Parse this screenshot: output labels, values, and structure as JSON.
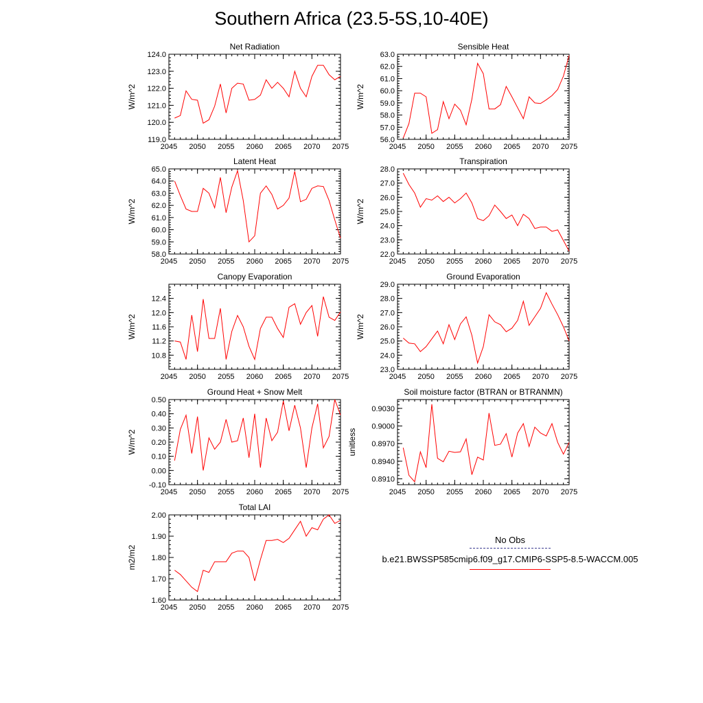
{
  "figure_title": "Southern Africa (23.5-5S,10-40E)",
  "colors": {
    "series": "#ff0000",
    "axes": "#000000",
    "obs_line": "#3b3b8f"
  },
  "legend": {
    "obs_label": "No Obs",
    "model_label": "b.e21.BWSSP585cmip6.f09_g17.CMIP6-SSP5-8.5-WACCM.005"
  },
  "chart_data": [
    {
      "type": "line",
      "title": "Net Radiation",
      "ylabel": "W/m^2",
      "xlim": [
        2045,
        2075
      ],
      "xticks": [
        2045,
        2050,
        2055,
        2060,
        2065,
        2070,
        2075
      ],
      "ylim": [
        119.0,
        124.0
      ],
      "yticks": [
        119.0,
        120.0,
        121.0,
        122.0,
        123.0,
        124.0
      ],
      "ytick_decimals": 1,
      "x": [
        2046,
        2047,
        2048,
        2049,
        2050,
        2051,
        2052,
        2053,
        2054,
        2055,
        2056,
        2057,
        2058,
        2059,
        2060,
        2061,
        2062,
        2063,
        2064,
        2065,
        2066,
        2067,
        2068,
        2069,
        2070,
        2071,
        2072,
        2073,
        2074,
        2075
      ],
      "series": [
        {
          "values": [
            120.25,
            120.4,
            121.85,
            121.35,
            121.3,
            119.95,
            120.15,
            120.95,
            122.25,
            120.55,
            122.0,
            122.3,
            122.25,
            121.3,
            121.35,
            121.6,
            122.5,
            122.0,
            122.35,
            122.0,
            121.5,
            123.0,
            122.0,
            121.5,
            122.7,
            123.35,
            123.35,
            122.8,
            122.5,
            122.7
          ]
        }
      ]
    },
    {
      "type": "line",
      "title": "Sensible Heat",
      "ylabel": "W/m^2",
      "xlim": [
        2045,
        2075
      ],
      "xticks": [
        2045,
        2050,
        2055,
        2060,
        2065,
        2070,
        2075
      ],
      "ylim": [
        56.0,
        63.0
      ],
      "yticks": [
        56.0,
        57.0,
        58.0,
        59.0,
        60.0,
        61.0,
        62.0,
        63.0
      ],
      "ytick_decimals": 1,
      "x": [
        2046,
        2047,
        2048,
        2049,
        2050,
        2051,
        2052,
        2053,
        2054,
        2055,
        2056,
        2057,
        2058,
        2059,
        2060,
        2061,
        2062,
        2063,
        2064,
        2065,
        2066,
        2067,
        2068,
        2069,
        2070,
        2071,
        2072,
        2073,
        2074,
        2075
      ],
      "series": [
        {
          "values": [
            56.1,
            57.3,
            59.8,
            59.8,
            59.5,
            56.5,
            56.8,
            59.1,
            57.7,
            58.9,
            58.4,
            57.2,
            59.3,
            62.25,
            61.4,
            58.5,
            58.5,
            58.85,
            60.35,
            59.5,
            58.6,
            57.7,
            59.5,
            59.0,
            58.95,
            59.25,
            59.6,
            60.1,
            61.2,
            62.9
          ]
        }
      ]
    },
    {
      "type": "line",
      "title": "Latent Heat",
      "ylabel": "W/m^2",
      "xlim": [
        2045,
        2075
      ],
      "xticks": [
        2045,
        2050,
        2055,
        2060,
        2065,
        2070,
        2075
      ],
      "ylim": [
        58.0,
        65.0
      ],
      "yticks": [
        58.0,
        59.0,
        60.0,
        61.0,
        62.0,
        63.0,
        64.0,
        65.0
      ],
      "ytick_decimals": 1,
      "x": [
        2046,
        2047,
        2048,
        2049,
        2050,
        2051,
        2052,
        2053,
        2054,
        2055,
        2056,
        2057,
        2058,
        2059,
        2060,
        2061,
        2062,
        2063,
        2064,
        2065,
        2066,
        2067,
        2068,
        2069,
        2070,
        2071,
        2072,
        2073,
        2074,
        2075
      ],
      "series": [
        {
          "values": [
            64.0,
            62.8,
            61.7,
            61.5,
            61.5,
            63.4,
            63.0,
            61.8,
            64.3,
            61.4,
            63.5,
            64.85,
            62.4,
            59.0,
            59.5,
            63.0,
            63.6,
            62.9,
            61.7,
            62.0,
            62.6,
            64.8,
            62.3,
            62.5,
            63.4,
            63.6,
            63.55,
            62.4,
            60.8,
            59.3
          ]
        }
      ]
    },
    {
      "type": "line",
      "title": "Transpiration",
      "ylabel": "W/m^2",
      "xlim": [
        2045,
        2075
      ],
      "xticks": [
        2045,
        2050,
        2055,
        2060,
        2065,
        2070,
        2075
      ],
      "ylim": [
        22.0,
        28.0
      ],
      "yticks": [
        22.0,
        23.0,
        24.0,
        25.0,
        26.0,
        27.0,
        28.0
      ],
      "ytick_decimals": 1,
      "x": [
        2046,
        2047,
        2048,
        2049,
        2050,
        2051,
        2052,
        2053,
        2054,
        2055,
        2056,
        2057,
        2058,
        2059,
        2060,
        2061,
        2062,
        2063,
        2064,
        2065,
        2066,
        2067,
        2068,
        2069,
        2070,
        2071,
        2072,
        2073,
        2074,
        2075
      ],
      "series": [
        {
          "values": [
            27.7,
            26.9,
            26.3,
            25.3,
            25.9,
            25.8,
            26.1,
            25.7,
            26.0,
            25.6,
            25.9,
            26.3,
            25.6,
            24.5,
            24.35,
            24.7,
            25.45,
            25.0,
            24.5,
            24.75,
            24.0,
            24.8,
            24.5,
            23.8,
            23.9,
            23.9,
            23.6,
            23.7,
            22.95,
            22.2
          ]
        }
      ]
    },
    {
      "type": "line",
      "title": "Canopy Evaporation",
      "ylabel": "W/m^2",
      "xlim": [
        2045,
        2075
      ],
      "xticks": [
        2045,
        2050,
        2055,
        2060,
        2065,
        2070,
        2075
      ],
      "ylim": [
        10.4,
        12.8
      ],
      "yticks": [
        10.8,
        11.2,
        11.6,
        12.0,
        12.4
      ],
      "ytick_decimals": 1,
      "x": [
        2046,
        2047,
        2048,
        2049,
        2050,
        2051,
        2052,
        2053,
        2054,
        2055,
        2056,
        2057,
        2058,
        2059,
        2060,
        2061,
        2062,
        2063,
        2064,
        2065,
        2066,
        2067,
        2068,
        2069,
        2070,
        2071,
        2072,
        2073,
        2074,
        2075
      ],
      "series": [
        {
          "values": [
            11.2,
            11.17,
            10.68,
            11.93,
            10.9,
            12.38,
            11.27,
            11.27,
            12.12,
            10.68,
            11.47,
            11.92,
            11.6,
            11.05,
            10.68,
            11.55,
            11.87,
            11.87,
            11.55,
            11.3,
            12.15,
            12.25,
            11.67,
            12.0,
            12.2,
            11.33,
            12.45,
            11.87,
            11.78,
            12.02
          ]
        }
      ]
    },
    {
      "type": "line",
      "title": "Ground Evaporation",
      "ylabel": "W/m^2",
      "xlim": [
        2045,
        2075
      ],
      "xticks": [
        2045,
        2050,
        2055,
        2060,
        2065,
        2070,
        2075
      ],
      "ylim": [
        23.0,
        29.0
      ],
      "yticks": [
        23.0,
        24.0,
        25.0,
        26.0,
        27.0,
        28.0,
        29.0
      ],
      "ytick_decimals": 1,
      "x": [
        2046,
        2047,
        2048,
        2049,
        2050,
        2051,
        2052,
        2053,
        2054,
        2055,
        2056,
        2057,
        2058,
        2059,
        2060,
        2061,
        2062,
        2063,
        2064,
        2065,
        2066,
        2067,
        2068,
        2069,
        2070,
        2071,
        2072,
        2073,
        2074,
        2075
      ],
      "series": [
        {
          "values": [
            25.2,
            24.85,
            24.8,
            24.25,
            24.6,
            25.15,
            25.7,
            24.8,
            26.15,
            25.1,
            26.2,
            26.7,
            25.4,
            23.45,
            24.6,
            26.85,
            26.35,
            26.15,
            25.65,
            25.9,
            26.45,
            27.8,
            26.1,
            26.7,
            27.3,
            28.4,
            27.6,
            26.85,
            26.0,
            25.0
          ]
        }
      ]
    },
    {
      "type": "line",
      "title": "Ground Heat + Snow Melt",
      "ylabel": "W/m^2",
      "xlim": [
        2045,
        2075
      ],
      "xticks": [
        2045,
        2050,
        2055,
        2060,
        2065,
        2070,
        2075
      ],
      "ylim": [
        -0.1,
        0.5
      ],
      "yticks": [
        -0.1,
        0.0,
        0.1,
        0.2,
        0.3,
        0.4,
        0.5
      ],
      "ytick_decimals": 2,
      "x": [
        2046,
        2047,
        2048,
        2049,
        2050,
        2051,
        2052,
        2053,
        2054,
        2055,
        2056,
        2057,
        2058,
        2059,
        2060,
        2061,
        2062,
        2063,
        2064,
        2065,
        2066,
        2067,
        2068,
        2069,
        2070,
        2071,
        2072,
        2073,
        2074,
        2075
      ],
      "series": [
        {
          "values": [
            0.07,
            0.29,
            0.39,
            0.12,
            0.38,
            0.0,
            0.23,
            0.15,
            0.2,
            0.36,
            0.2,
            0.21,
            0.37,
            0.09,
            0.4,
            0.02,
            0.37,
            0.21,
            0.27,
            0.49,
            0.28,
            0.46,
            0.3,
            0.02,
            0.3,
            0.47,
            0.16,
            0.24,
            0.5,
            0.39
          ]
        }
      ]
    },
    {
      "type": "line",
      "title": "Soil moisture factor (BTRAN or BTRANMN)",
      "ylabel": "unitless",
      "xlim": [
        2045,
        2075
      ],
      "xticks": [
        2045,
        2050,
        2055,
        2060,
        2065,
        2070,
        2075
      ],
      "ylim": [
        0.89,
        0.9045
      ],
      "yticks": [
        0.891,
        0.894,
        0.897,
        0.9,
        0.903
      ],
      "ytick_decimals": 4,
      "x": [
        2046,
        2047,
        2048,
        2049,
        2050,
        2051,
        2052,
        2053,
        2054,
        2055,
        2056,
        2057,
        2058,
        2059,
        2060,
        2061,
        2062,
        2063,
        2064,
        2065,
        2066,
        2067,
        2068,
        2069,
        2070,
        2071,
        2072,
        2073,
        2074,
        2075
      ],
      "series": [
        {
          "values": [
            0.8963,
            0.8916,
            0.8905,
            0.8956,
            0.8929,
            0.9037,
            0.8945,
            0.8939,
            0.8957,
            0.8955,
            0.8956,
            0.8978,
            0.8917,
            0.8947,
            0.8942,
            0.9022,
            0.8967,
            0.8969,
            0.8987,
            0.8947,
            0.8988,
            0.9004,
            0.8965,
            0.8998,
            0.8988,
            0.8983,
            0.9004,
            0.8972,
            0.8952,
            0.8972
          ]
        }
      ]
    },
    {
      "type": "line",
      "title": "Total LAI",
      "ylabel": "m2/m2",
      "xlim": [
        2045,
        2075
      ],
      "xticks": [
        2045,
        2050,
        2055,
        2060,
        2065,
        2070,
        2075
      ],
      "ylim": [
        1.6,
        2.0
      ],
      "yticks": [
        1.6,
        1.7,
        1.8,
        1.9,
        2.0
      ],
      "ytick_decimals": 2,
      "x": [
        2046,
        2047,
        2048,
        2049,
        2050,
        2051,
        2052,
        2053,
        2054,
        2055,
        2056,
        2057,
        2058,
        2059,
        2060,
        2061,
        2062,
        2063,
        2064,
        2065,
        2066,
        2067,
        2068,
        2069,
        2070,
        2071,
        2072,
        2073,
        2074,
        2075
      ],
      "series": [
        {
          "values": [
            1.74,
            1.72,
            1.69,
            1.66,
            1.64,
            1.74,
            1.73,
            1.78,
            1.78,
            1.78,
            1.82,
            1.83,
            1.83,
            1.8,
            1.69,
            1.79,
            1.88,
            1.88,
            1.885,
            1.87,
            1.89,
            1.93,
            1.97,
            1.9,
            1.94,
            1.93,
            1.98,
            2.0,
            1.96,
            1.975
          ]
        }
      ]
    }
  ]
}
